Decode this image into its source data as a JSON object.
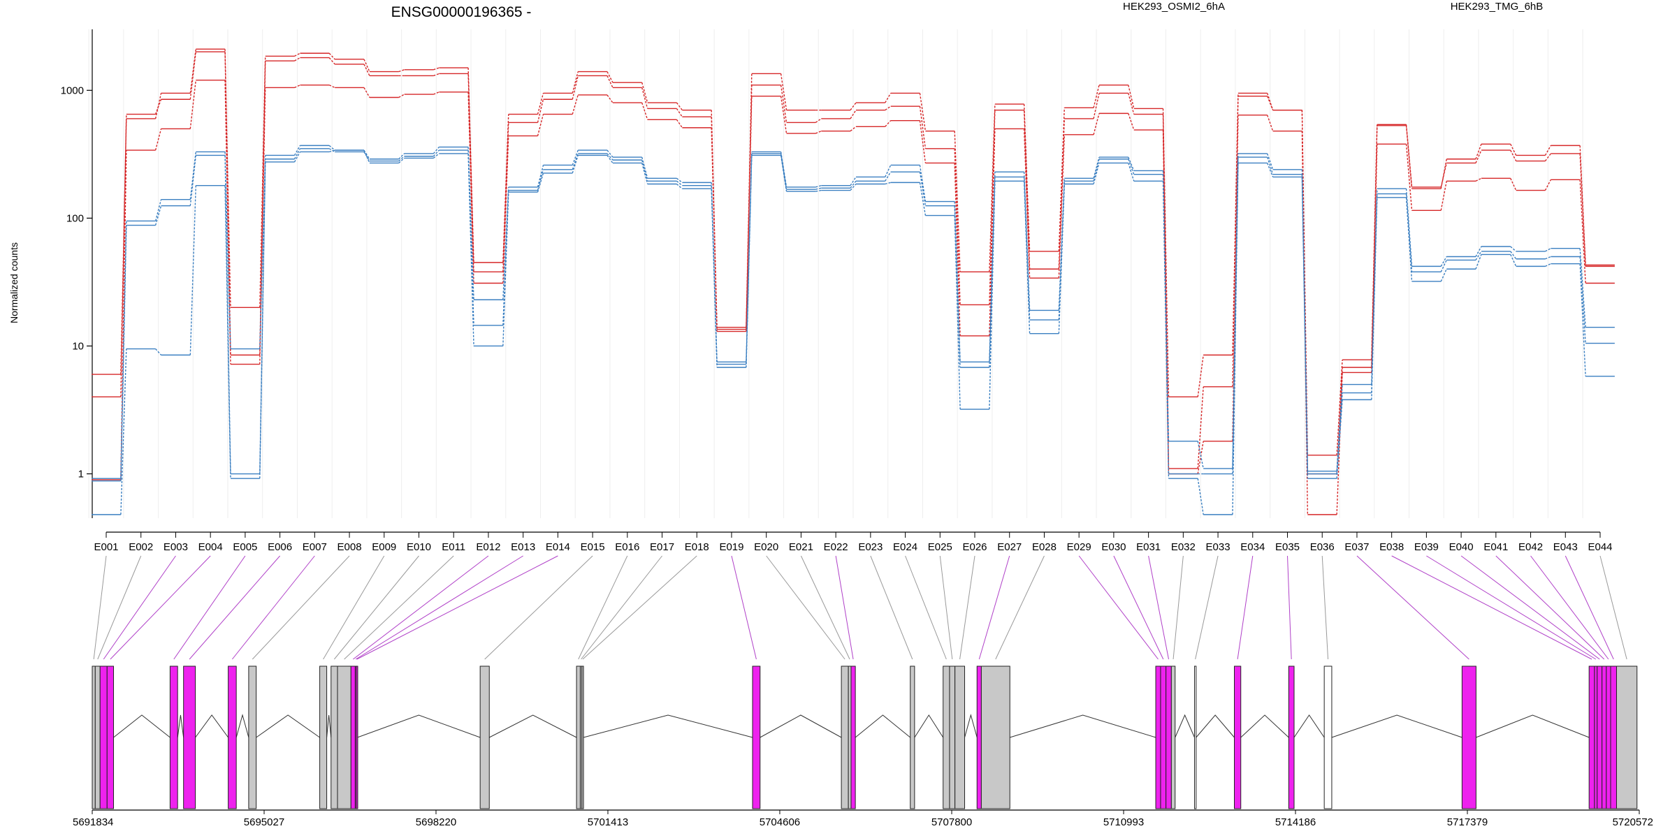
{
  "chart_data": {
    "type": "line",
    "title": "ENSG00000196365 -",
    "ylabel": "Normalized counts",
    "yscale": "log",
    "ylim": [
      0.45,
      3000
    ],
    "yticks": [
      1,
      10,
      100,
      1000
    ],
    "ytick_labels": [
      "1",
      "10",
      "100",
      "1000"
    ],
    "legend": [
      {
        "name": "HEK293_OSMI2_6hA",
        "color": "#d62728"
      },
      {
        "name": "HEK293_TMG_6hB",
        "color": "#3a7fc1"
      }
    ],
    "categories": [
      "E001",
      "E002",
      "E003",
      "E004",
      "E005",
      "E006",
      "E007",
      "E008",
      "E009",
      "E010",
      "E011",
      "E012",
      "E013",
      "E014",
      "E015",
      "E016",
      "E017",
      "E018",
      "E019",
      "E020",
      "E021",
      "E022",
      "E023",
      "E024",
      "E025",
      "E026",
      "E027",
      "E028",
      "E029",
      "E030",
      "E031",
      "E032",
      "E033",
      "E034",
      "E035",
      "E036",
      "E037",
      "E038",
      "E039",
      "E040",
      "E041",
      "E042",
      "E043",
      "E044"
    ],
    "series": [
      {
        "condition": "HEK293_OSMI2_6hA",
        "color": "#d62728",
        "values": [
          6,
          600,
          950,
          2100,
          20,
          1850,
          1950,
          1750,
          1400,
          1450,
          1500,
          45,
          650,
          950,
          1400,
          1150,
          800,
          700,
          14,
          1350,
          700,
          700,
          800,
          950,
          480,
          38,
          780,
          55,
          730,
          1100,
          720,
          4,
          8.5,
          950,
          700,
          1.4,
          7.8,
          530,
          170,
          290,
          380,
          310,
          370,
          43
        ]
      },
      {
        "condition": "HEK293_OSMI2_6hA",
        "color": "#d62728",
        "values": [
          4,
          650,
          850,
          2000,
          8.5,
          1700,
          1800,
          1600,
          1300,
          1300,
          1350,
          38,
          560,
          850,
          1300,
          1050,
          720,
          620,
          13,
          1100,
          560,
          600,
          700,
          750,
          350,
          21,
          700,
          40,
          600,
          950,
          650,
          1.1,
          4.8,
          900,
          700,
          1,
          6.8,
          540,
          175,
          270,
          340,
          280,
          320,
          42
        ]
      },
      {
        "condition": "HEK293_OSMI2_6hA",
        "color": "#d62728",
        "values": [
          0.9,
          340,
          500,
          1200,
          7.2,
          1050,
          1100,
          1050,
          880,
          930,
          970,
          31,
          440,
          650,
          920,
          800,
          590,
          510,
          13.5,
          900,
          460,
          480,
          520,
          580,
          270,
          12,
          500,
          34,
          450,
          660,
          490,
          1,
          1.8,
          640,
          480,
          0.48,
          6.2,
          380,
          115,
          195,
          205,
          165,
          200,
          31
        ]
      },
      {
        "condition": "HEK293_TMG_6hB",
        "color": "#3a7fc1",
        "values": [
          0.92,
          95,
          140,
          330,
          9.5,
          310,
          370,
          340,
          290,
          320,
          360,
          23,
          175,
          260,
          340,
          300,
          205,
          190,
          7.5,
          330,
          175,
          180,
          210,
          260,
          135,
          7.5,
          230,
          19,
          205,
          300,
          235,
          1.8,
          1.1,
          320,
          240,
          1.05,
          5,
          170,
          42,
          50,
          60,
          55,
          58,
          14
        ]
      },
      {
        "condition": "HEK293_TMG_6hB",
        "color": "#3a7fc1",
        "values": [
          0.88,
          88,
          125,
          310,
          1,
          290,
          350,
          330,
          280,
          305,
          340,
          14.5,
          165,
          240,
          320,
          285,
          195,
          180,
          7.2,
          320,
          168,
          172,
          195,
          230,
          125,
          6.8,
          210,
          16,
          195,
          290,
          220,
          1,
          1,
          300,
          220,
          1,
          4.3,
          155,
          38,
          47,
          55,
          48,
          50,
          10.5
        ]
      },
      {
        "condition": "HEK293_TMG_6hB",
        "color": "#3a7fc1",
        "values": [
          0.48,
          9.5,
          8.5,
          180,
          0.92,
          275,
          330,
          340,
          270,
          295,
          320,
          10,
          160,
          225,
          310,
          270,
          185,
          170,
          6.8,
          310,
          162,
          165,
          185,
          190,
          105,
          3.2,
          195,
          12.5,
          185,
          270,
          195,
          0.92,
          0.48,
          270,
          210,
          0.92,
          3.8,
          145,
          32,
          40,
          52,
          42,
          44,
          5.8
        ]
      }
    ],
    "gene_model": {
      "x_axis_labels": [
        "5691834",
        "5695027",
        "5698220",
        "5701413",
        "5704606",
        "5707800",
        "5710993",
        "5714186",
        "5717379",
        "5720572"
      ],
      "x_axis_values": [
        5691834,
        5695027,
        5698220,
        5701413,
        5704606,
        5707800,
        5710993,
        5714186,
        5717379,
        5720572
      ],
      "exons": [
        {
          "id": "E001",
          "start": 5691834,
          "end": 5691890,
          "color": "#c8c8c8"
        },
        {
          "id": "E002",
          "start": 5691890,
          "end": 5691980,
          "color": "#c8c8c8"
        },
        {
          "id": "E003",
          "start": 5691980,
          "end": 5692110,
          "color": "#ee22ee"
        },
        {
          "id": "E004",
          "start": 5692110,
          "end": 5692230,
          "color": "#ee22ee"
        },
        {
          "id": "E005",
          "start": 5693280,
          "end": 5693420,
          "color": "#ee22ee"
        },
        {
          "id": "E006",
          "start": 5693530,
          "end": 5693750,
          "color": "#ee22ee"
        },
        {
          "id": "E007",
          "start": 5694360,
          "end": 5694510,
          "color": "#ee22ee"
        },
        {
          "id": "E008",
          "start": 5694740,
          "end": 5694880,
          "color": "#c8c8c8"
        },
        {
          "id": "E009",
          "start": 5696060,
          "end": 5696190,
          "color": "#c8c8c8"
        },
        {
          "id": "E010",
          "start": 5696270,
          "end": 5696390,
          "color": "#c8c8c8"
        },
        {
          "id": "E011",
          "start": 5696390,
          "end": 5696640,
          "color": "#c8c8c8"
        },
        {
          "id": "E012",
          "start": 5696640,
          "end": 5696720,
          "color": "#ee22ee"
        },
        {
          "id": "E013",
          "start": 5696720,
          "end": 5696740,
          "color": "#ee22ee"
        },
        {
          "id": "E014",
          "start": 5696740,
          "end": 5696760,
          "color": "#ee22ee"
        },
        {
          "id": "E015",
          "start": 5699040,
          "end": 5699210,
          "color": "#c8c8c8"
        },
        {
          "id": "E016",
          "start": 5700830,
          "end": 5700900,
          "color": "#c8c8c8"
        },
        {
          "id": "E017",
          "start": 5700900,
          "end": 5700930,
          "color": "#c8c8c8"
        },
        {
          "id": "E018",
          "start": 5700930,
          "end": 5700960,
          "color": "#c8c8c8"
        },
        {
          "id": "E019",
          "start": 5704100,
          "end": 5704240,
          "color": "#ee22ee"
        },
        {
          "id": "E020",
          "start": 5705750,
          "end": 5705880,
          "color": "#c8c8c8"
        },
        {
          "id": "E021",
          "start": 5705880,
          "end": 5705930,
          "color": "#c8c8c8"
        },
        {
          "id": "E022",
          "start": 5705930,
          "end": 5706010,
          "color": "#ee22ee"
        },
        {
          "id": "E023",
          "start": 5707030,
          "end": 5707110,
          "color": "#c8c8c8"
        },
        {
          "id": "E024",
          "start": 5707640,
          "end": 5707760,
          "color": "#c8c8c8"
        },
        {
          "id": "E025",
          "start": 5707760,
          "end": 5707860,
          "color": "#c8c8c8"
        },
        {
          "id": "E026",
          "start": 5707860,
          "end": 5708040,
          "color": "#c8c8c8"
        },
        {
          "id": "E027",
          "start": 5708270,
          "end": 5708350,
          "color": "#ee22ee"
        },
        {
          "id": "E028",
          "start": 5708350,
          "end": 5708880,
          "color": "#c8c8c8"
        },
        {
          "id": "E029",
          "start": 5711590,
          "end": 5711680,
          "color": "#ee22ee"
        },
        {
          "id": "E030",
          "start": 5711680,
          "end": 5711780,
          "color": "#ee22ee"
        },
        {
          "id": "E031",
          "start": 5711780,
          "end": 5711880,
          "color": "#ee22ee"
        },
        {
          "id": "E032",
          "start": 5711880,
          "end": 5711950,
          "color": "#c8c8c8"
        },
        {
          "id": "E033",
          "start": 5712310,
          "end": 5712340,
          "color": "#ffffff"
        },
        {
          "id": "E034",
          "start": 5713050,
          "end": 5713170,
          "color": "#ee22ee"
        },
        {
          "id": "E035",
          "start": 5714060,
          "end": 5714160,
          "color": "#ee22ee"
        },
        {
          "id": "E036",
          "start": 5714720,
          "end": 5714860,
          "color": "#ffffff"
        },
        {
          "id": "E037",
          "start": 5717280,
          "end": 5717540,
          "color": "#ee22ee"
        },
        {
          "id": "E038",
          "start": 5719640,
          "end": 5719740,
          "color": "#ee22ee"
        },
        {
          "id": "E039",
          "start": 5719740,
          "end": 5719790,
          "color": "#ee22ee"
        },
        {
          "id": "E040",
          "start": 5719790,
          "end": 5719880,
          "color": "#ee22ee"
        },
        {
          "id": "E041",
          "start": 5719880,
          "end": 5719960,
          "color": "#ee22ee"
        },
        {
          "id": "E042",
          "start": 5719960,
          "end": 5720040,
          "color": "#ee22ee"
        },
        {
          "id": "E043",
          "start": 5720040,
          "end": 5720150,
          "color": "#ee22ee"
        },
        {
          "id": "E044",
          "start": 5720150,
          "end": 5720530,
          "color": "#c8c8c8"
        }
      ],
      "introns": [
        [
          5692230,
          5693280
        ],
        [
          5693420,
          5693530
        ],
        [
          5693750,
          5694360
        ],
        [
          5694510,
          5694740
        ],
        [
          5694880,
          5696060
        ],
        [
          5696190,
          5696270
        ],
        [
          5696760,
          5699040
        ],
        [
          5699210,
          5700830
        ],
        [
          5700960,
          5704100
        ],
        [
          5704240,
          5705750
        ],
        [
          5706010,
          5707030
        ],
        [
          5707110,
          5707640
        ],
        [
          5708040,
          5708270
        ],
        [
          5708880,
          5711590
        ],
        [
          5711950,
          5712310
        ],
        [
          5712340,
          5713050
        ],
        [
          5713170,
          5714060
        ],
        [
          5714160,
          5714720
        ],
        [
          5714860,
          5717280
        ],
        [
          5717540,
          5719640
        ]
      ]
    }
  }
}
